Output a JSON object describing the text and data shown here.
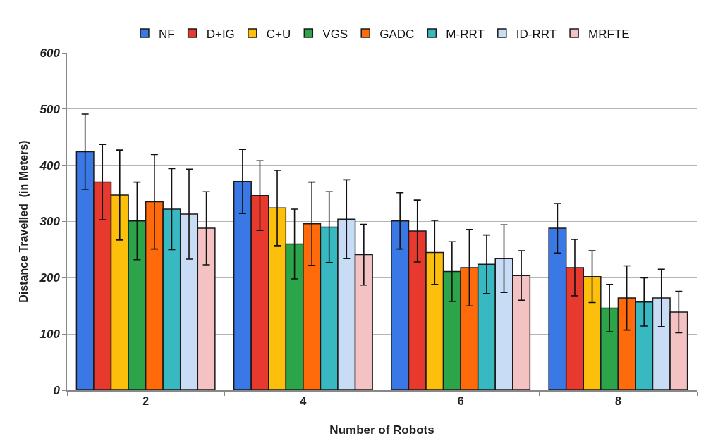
{
  "chart_data": {
    "type": "bar",
    "xlabel": "Number of Robots",
    "ylabel": "Distance Travelled  (in Meters)",
    "categories": [
      "2",
      "4",
      "6",
      "8"
    ],
    "ylim": [
      0,
      600
    ],
    "yticks": [
      0,
      100,
      200,
      300,
      400,
      500,
      600
    ],
    "grid": "y",
    "legend": "top",
    "series": [
      {
        "name": "NF",
        "color": "#3a78e6",
        "values": [
          424,
          371,
          301,
          288
        ],
        "errors": [
          67,
          57,
          50,
          44
        ]
      },
      {
        "name": "D+IG",
        "color": "#e8392e",
        "values": [
          370,
          346,
          283,
          218
        ],
        "errors": [
          67,
          62,
          55,
          50
        ]
      },
      {
        "name": "C+U",
        "color": "#fbbf0c",
        "values": [
          347,
          324,
          245,
          202
        ],
        "errors": [
          80,
          67,
          57,
          46
        ]
      },
      {
        "name": "VGS",
        "color": "#2ba44a",
        "values": [
          301,
          260,
          211,
          146
        ],
        "errors": [
          69,
          62,
          53,
          42
        ]
      },
      {
        "name": "GADC",
        "color": "#ff6a0a",
        "values": [
          335,
          296,
          218,
          164
        ],
        "errors": [
          84,
          74,
          68,
          57
        ]
      },
      {
        "name": "M-RRT",
        "color": "#38b8c0",
        "values": [
          322,
          290,
          224,
          157
        ],
        "errors": [
          72,
          63,
          52,
          43
        ]
      },
      {
        "name": "ID-RRT",
        "color": "#c8dcf5",
        "values": [
          313,
          304,
          234,
          164
        ],
        "errors": [
          80,
          70,
          60,
          51
        ]
      },
      {
        "name": "MRFTE",
        "color": "#f4c2c2",
        "values": [
          288,
          241,
          204,
          139
        ],
        "errors": [
          65,
          54,
          44,
          37
        ]
      }
    ]
  }
}
